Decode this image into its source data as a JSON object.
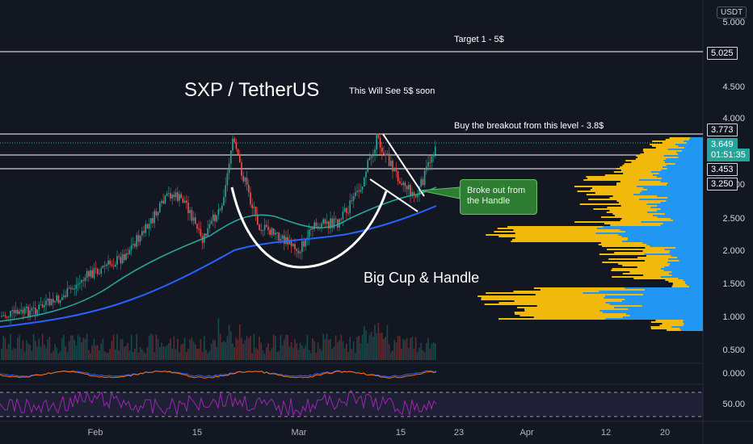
{
  "chart": {
    "currency_badge": "USDT",
    "title": "SXP / TetherUS",
    "annotation_soon": "This Will See 5$ soon",
    "annotation_target": "Target 1 - 5$",
    "annotation_buy": "Buy the breakout from this level - 3.8$",
    "annotation_pattern": "Big Cup & Handle",
    "callout_text": "Broke out from the Handle",
    "price_axis_labels": [
      "5.000",
      "4.500",
      "4.000",
      "3.500",
      "3.000",
      "2.500",
      "2.000",
      "1.500",
      "1.000",
      "0.500"
    ],
    "price_tags": {
      "target": "5.025",
      "resistance": "3.773",
      "current_price": "3.649",
      "countdown": "01:51:35",
      "level_mid": "3.453",
      "level_low": "3.250"
    },
    "macd_axis_label": "0.000",
    "rsi_axis_label": "50.00",
    "time_labels": [
      "Feb",
      "15",
      "Mar",
      "15",
      "23",
      "Apr",
      "12",
      "20"
    ],
    "colors": {
      "background": "#131722",
      "up_candle": "#26a69a",
      "down_candle": "#ef5350",
      "ma_fast": "#26a69a",
      "ma_slow": "#2962ff",
      "volume_profile_up": "#2196f3",
      "volume_profile_down": "#f0b90b",
      "rsi_line": "#9c27b0",
      "callout_bg": "#2e7d32"
    }
  }
}
